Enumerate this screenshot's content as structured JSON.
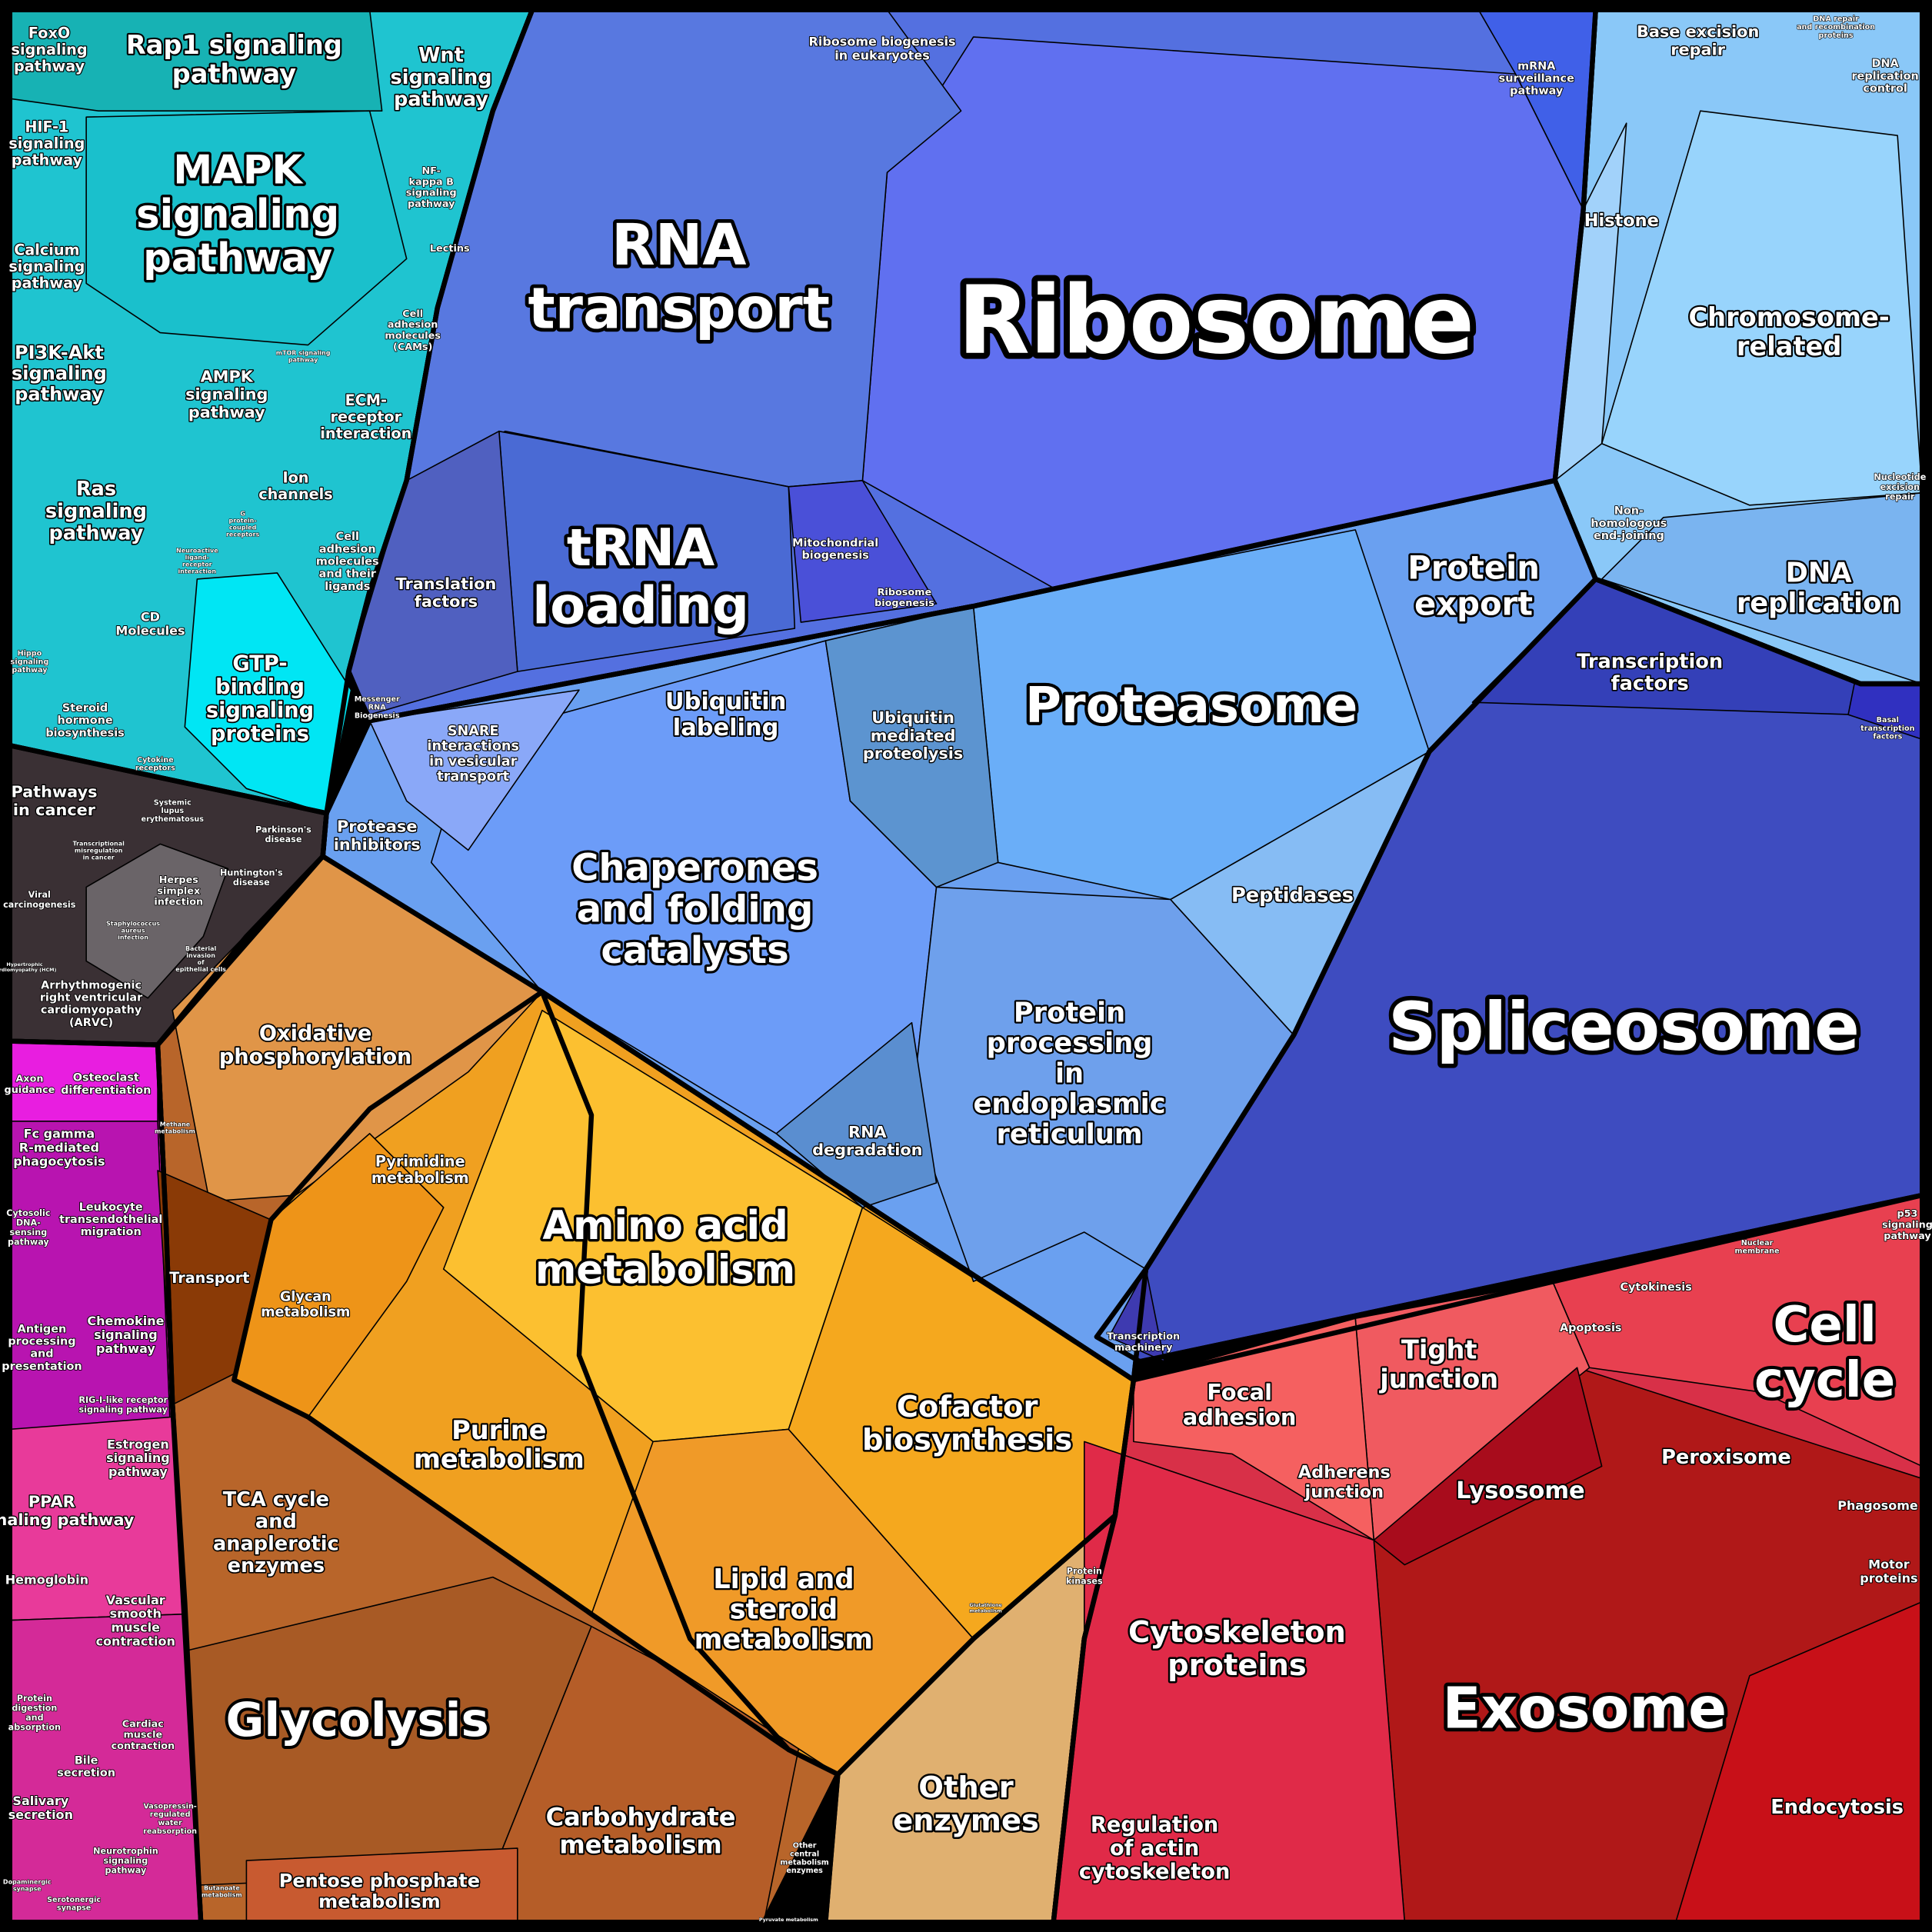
{
  "labels": [
    "FoxO signaling pathway",
    "Rap1 signaling pathway",
    "Wnt signaling pathway",
    "HIF-1 signaling pathway",
    "MAPK signaling pathway",
    "NF-kappa B signaling pathway",
    "Lectins",
    "Calcium signaling pathway",
    "Cell adhesion molecules (CAMs)",
    "mTOR signaling pathway",
    "PI3K-Akt signaling pathway",
    "AMPK signaling pathway",
    "ECM-receptor interaction",
    "Ion channels",
    "Ras signaling pathway",
    "G protein-coupled receptors",
    "Neuroactive ligand-receptor interaction",
    "Cell adhesion molecules and their ligands",
    "CD Molecules",
    "Hippo signaling pathway",
    "Steroid hormone biosynthesis",
    "GTP-binding signaling proteins",
    "Cytokine receptors",
    "Pathways in cancer",
    "Systemic lupus erythematosus",
    "Transcriptional misregulation in cancer",
    "Parkinson's disease",
    "Viral carcinogenesis",
    "Herpes simplex infection",
    "Huntington's disease",
    "Staphylococcus aureus infection",
    "Bacterial invasion of epithelial cells",
    "Hypertrophic cardiomyopathy (HCM)",
    "Arrhythmogenic right ventricular cardiomyopathy (ARVC)",
    "Axon guidance",
    "Osteoclast differentiation",
    "Fc gamma R-mediated phagocytosis",
    "Cytosolic DNA-sensing pathway",
    "Leukocyte transendothelial migration",
    "Chemokine signaling pathway",
    "Antigen processing and presentation",
    "RIG-I-like receptor signaling pathway",
    "Estrogen signaling pathway",
    "PPAR signaling pathway",
    "Hemoglobin",
    "Vascular smooth muscle contraction",
    "Protein digestion and absorption",
    "Cardiac muscle contraction",
    "Bile secretion",
    "Salivary secretion",
    "Vasopressin-regulated water reabsorption",
    "Neurotrophin signaling pathway",
    "Dopaminergic synapse",
    "Serotonergic synapse",
    "Oxidative phosphorylation",
    "Methane metabolism",
    "Transport",
    "TCA cycle and anaplerotic enzymes",
    "Glycolysis",
    "Carbohydrate metabolism",
    "Pentose phosphate metabolism",
    "Butanoate metabolism",
    "Other central metabolism enzymes",
    "Pyruvate metabolism",
    "Pyrimidine metabolism",
    "Glycan metabolism",
    "Amino acid metabolism",
    "Purine metabolism",
    "Cofactor biosynthesis",
    "Lipid and steroid metabolism",
    "Glutathione metabolism",
    "Protein kinases",
    "Other enzymes",
    "Ribosome biogenesis in eukaryotes",
    "mRNA surveillance pathway",
    "RNA transport",
    "Ribosome",
    "tRNA loading",
    "Translation factors",
    "Mitochondrial biogenesis",
    "Ribosome biogenesis",
    "Messenger RNA Biogenesis",
    "Base excision repair",
    "DNA repair and recombination proteins",
    "DNA replication control",
    "Histone",
    "Chromosome-related",
    "Nucleotide excision repair",
    "Non-homologous end-joining",
    "DNA replication",
    "Protein export",
    "Transcription factors",
    "Basal transcription factors",
    "Ubiquitin labeling",
    "Ubiquitin mediated proteolysis",
    "Proteasome",
    "SNARE interactions in vesicular transport",
    "Protease inhibitors",
    "Chaperones and folding catalysts",
    "Peptidases",
    "Spliceosome",
    "Protein processing in endoplasmic reticulum",
    "RNA degradation",
    "Transcription machinery",
    "p53 signaling pathway",
    "Nuclear membrane",
    "Cytokinesis",
    "Cell cycle",
    "Apoptosis",
    "Tight junction",
    "Focal adhesion",
    "Adherens junction",
    "Lysosome",
    "Peroxisome",
    "Phagosome",
    "Motor proteins",
    "Cytoskeleton proteins",
    "Exosome",
    "Endocytosis",
    "Regulation of actin cytoskeleton"
  ]
}
